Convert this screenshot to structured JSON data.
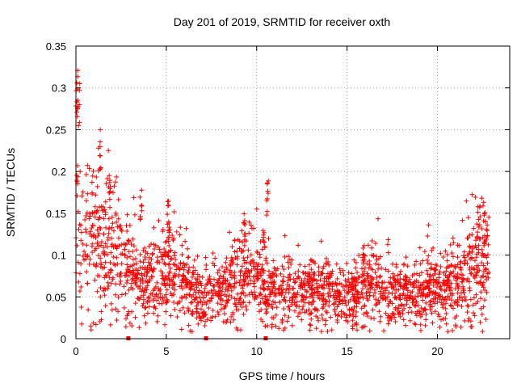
{
  "chart_data": {
    "type": "scatter",
    "title": "Day 201 of 2019, SRMTID for receiver oxth",
    "xlabel": "GPS time / hours",
    "ylabel": "SRMTID / TECUs",
    "xlim": [
      0,
      24
    ],
    "ylim": [
      0,
      0.35
    ],
    "x_ticks": [
      0,
      5,
      10,
      15,
      20
    ],
    "y_ticks": [
      0,
      0.05,
      0.1,
      0.15,
      0.2,
      0.25,
      0.3,
      0.35
    ],
    "x_tick_labels": [
      "0",
      "5",
      "10",
      "15",
      "20"
    ],
    "y_tick_labels": [
      "0",
      "0.05",
      "0.1",
      "0.15",
      "0.2",
      "0.25",
      "0.3",
      "0.35"
    ],
    "grid": true,
    "marker": "+",
    "marker_color": "#ff0000",
    "axis_markers_x": [
      2.9,
      7.2,
      10.5
    ],
    "envelope": [
      [
        0.0,
        0.13
      ],
      [
        0.5,
        0.12
      ],
      [
        1.0,
        0.12
      ],
      [
        1.5,
        0.11
      ],
      [
        2.0,
        0.12
      ],
      [
        2.5,
        0.09
      ],
      [
        3.0,
        0.08
      ],
      [
        3.5,
        0.07
      ],
      [
        4.0,
        0.07
      ],
      [
        4.5,
        0.07
      ],
      [
        5.0,
        0.08
      ],
      [
        5.5,
        0.085
      ],
      [
        6.0,
        0.07
      ],
      [
        6.5,
        0.055
      ],
      [
        7.0,
        0.05
      ],
      [
        7.5,
        0.05
      ],
      [
        8.0,
        0.055
      ],
      [
        8.5,
        0.065
      ],
      [
        9.0,
        0.075
      ],
      [
        9.5,
        0.08
      ],
      [
        10.0,
        0.07
      ],
      [
        10.5,
        0.06
      ],
      [
        11.0,
        0.055
      ],
      [
        12.0,
        0.055
      ],
      [
        13.0,
        0.055
      ],
      [
        14.0,
        0.052
      ],
      [
        15.0,
        0.05
      ],
      [
        15.5,
        0.052
      ],
      [
        16.0,
        0.065
      ],
      [
        16.5,
        0.07
      ],
      [
        17.0,
        0.06
      ],
      [
        18.0,
        0.055
      ],
      [
        19.0,
        0.055
      ],
      [
        20.0,
        0.06
      ],
      [
        20.5,
        0.062
      ],
      [
        21.0,
        0.065
      ],
      [
        21.5,
        0.08
      ],
      [
        22.0,
        0.085
      ],
      [
        22.5,
        0.09
      ],
      [
        22.8,
        0.095
      ]
    ],
    "spikes": [
      {
        "x": 0.05,
        "y": 0.33,
        "spread": 0.07
      },
      {
        "x": 0.15,
        "y": 0.31,
        "spread": 0.06
      },
      {
        "x": 1.3,
        "y": 0.25,
        "spread": 0.05
      },
      {
        "x": 1.85,
        "y": 0.23,
        "spread": 0.07
      },
      {
        "x": 3.6,
        "y": 0.185,
        "spread": 0.05
      },
      {
        "x": 5.1,
        "y": 0.165,
        "spread": 0.05
      },
      {
        "x": 9.3,
        "y": 0.15,
        "spread": 0.04
      },
      {
        "x": 10.6,
        "y": 0.19,
        "spread": 0.05
      },
      {
        "x": 10.4,
        "y": 0.13,
        "spread": 0.03
      },
      {
        "x": 15.9,
        "y": 0.115,
        "spread": 0.03
      },
      {
        "x": 22.3,
        "y": 0.165,
        "spread": 0.05
      },
      {
        "x": 22.6,
        "y": 0.16,
        "spread": 0.05
      }
    ],
    "x_end": 22.85,
    "n_points": 2200,
    "seed": 201
  }
}
